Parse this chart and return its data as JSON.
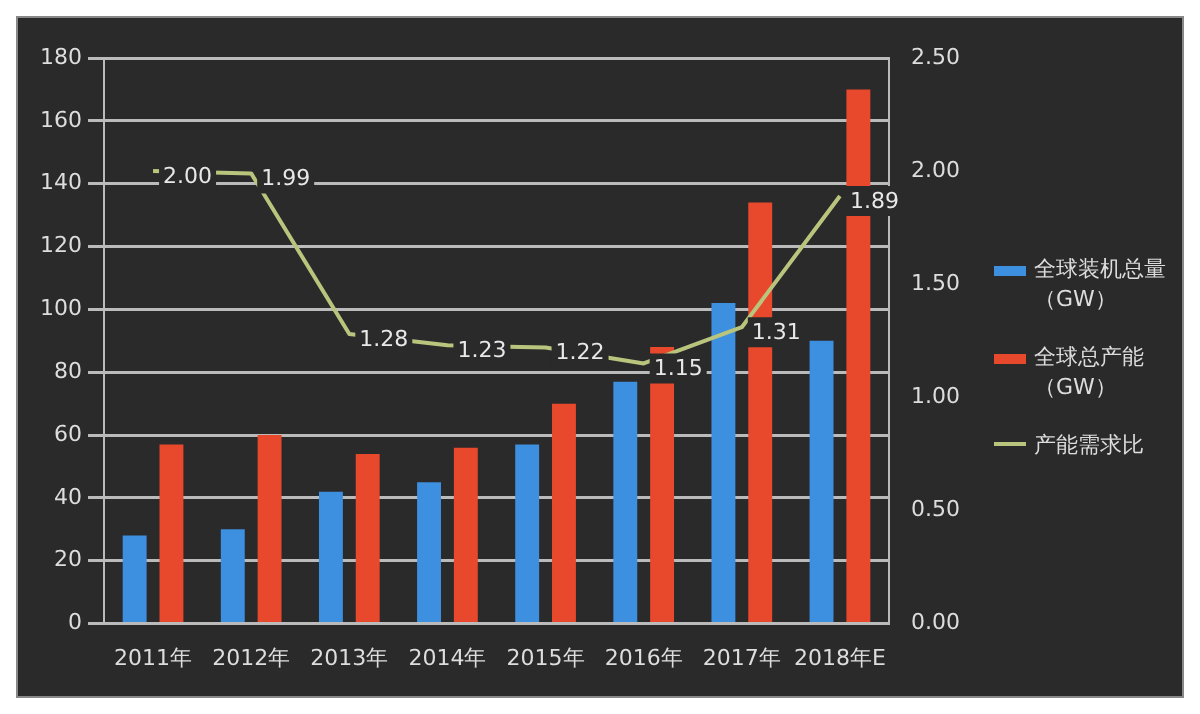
{
  "chart_data": {
    "type": "bar",
    "categories": [
      "2011年",
      "2012年",
      "2013年",
      "2014年",
      "2015年",
      "2016年",
      "2017年",
      "2018年E"
    ],
    "series": [
      {
        "name": "全球装机总量（GW）",
        "color": "#3d8fe0",
        "values": [
          28,
          30,
          42,
          45,
          57,
          77,
          102,
          90
        ]
      },
      {
        "name": "全球总产能（GW）",
        "color": "#e8482c",
        "values": [
          57,
          60,
          54,
          56,
          70,
          88,
          134,
          170
        ]
      },
      {
        "name": "产能需求比",
        "type": "line",
        "axis": "y2",
        "color": "#b9c57c",
        "values": [
          2.0,
          1.99,
          1.28,
          1.23,
          1.22,
          1.15,
          1.31,
          1.89
        ],
        "value_labels": [
          "2.00",
          "1.99",
          "1.28",
          "1.23",
          "1.22",
          "1.15",
          "1.31",
          "1.89"
        ]
      }
    ],
    "ylim": [
      0,
      180
    ],
    "yticks": [
      0,
      20,
      40,
      60,
      80,
      100,
      120,
      140,
      160,
      180
    ],
    "y2lim": [
      0,
      2.5
    ],
    "y2ticks": [
      {
        "value": 0,
        "label": "0.00"
      },
      {
        "value": 0.5,
        "label": "0.50"
      },
      {
        "value": 1,
        "label": "1.00"
      },
      {
        "value": 1.5,
        "label": "1.50"
      },
      {
        "value": 2,
        "label": "2.00"
      },
      {
        "value": 2.5,
        "label": "2.50"
      }
    ],
    "grid": "y",
    "legend": "right",
    "marker": "none"
  }
}
